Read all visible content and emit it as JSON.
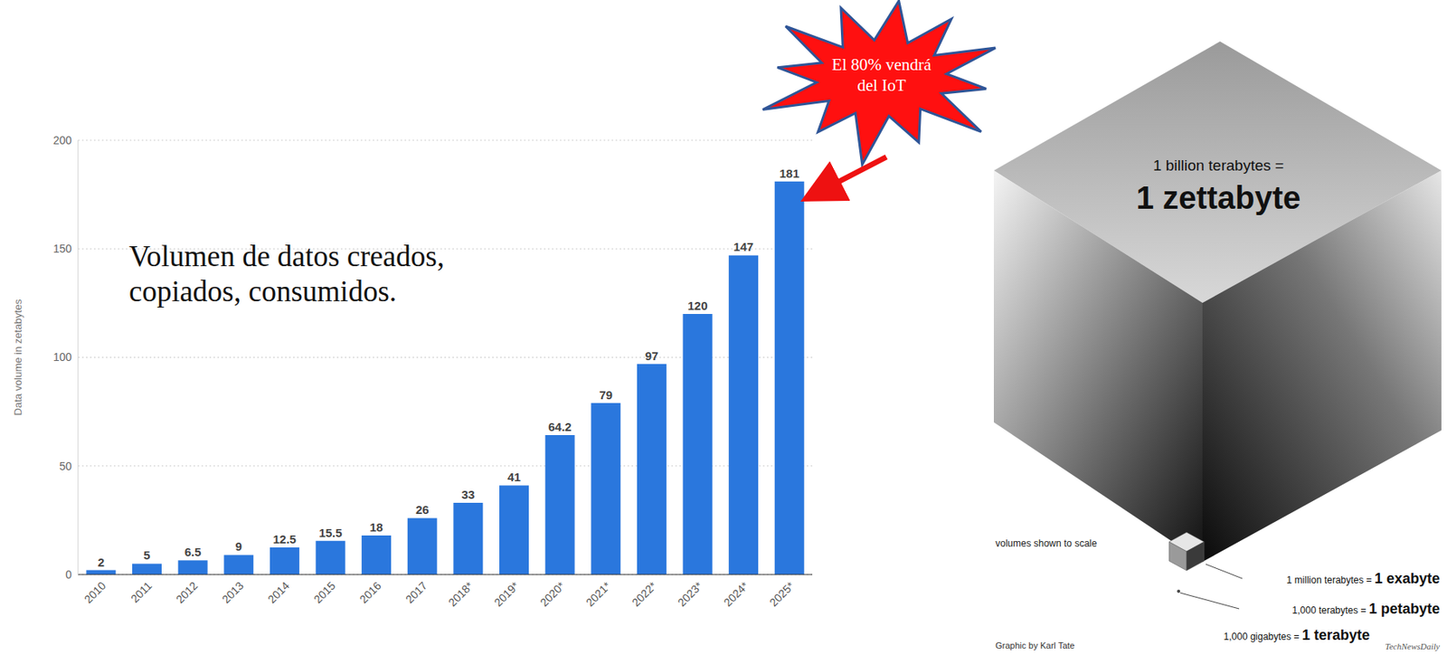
{
  "chart_data": {
    "type": "bar",
    "y_label": "Data volume in zetabytes",
    "categories": [
      "2010",
      "2011",
      "2012",
      "2013",
      "2014",
      "2015",
      "2016",
      "2017",
      "2018*",
      "2019*",
      "2020*",
      "2021*",
      "2022*",
      "2023*",
      "2024*",
      "2025*"
    ],
    "values": [
      2,
      5,
      6.5,
      9,
      12.5,
      15.5,
      18,
      26,
      33,
      41,
      64.2,
      79,
      97,
      120,
      147,
      181
    ],
    "color": "#2a77dd",
    "ylim": [
      0,
      200
    ],
    "yticks": [
      0,
      50,
      100,
      150,
      200
    ],
    "grid": true,
    "data_labels": true,
    "annotations": [
      "Volumen de datos creados, copiados, consumidos.",
      "El 80% vendrá del IoT"
    ]
  },
  "graphic": {
    "title": "1 billion terabytes =",
    "headline": "1 zettabyte",
    "note": "volumes shown to scale",
    "scale": [
      {
        "text": "1 million terabytes =",
        "unit": "1 exabyte"
      },
      {
        "text": "1,000 terabytes =",
        "unit": "1 petabyte"
      },
      {
        "text": "1,000 gigabytes =",
        "unit": "1 terabyte"
      }
    ],
    "credit": "Graphic by Karl Tate",
    "source": "TechNewsDaily"
  }
}
